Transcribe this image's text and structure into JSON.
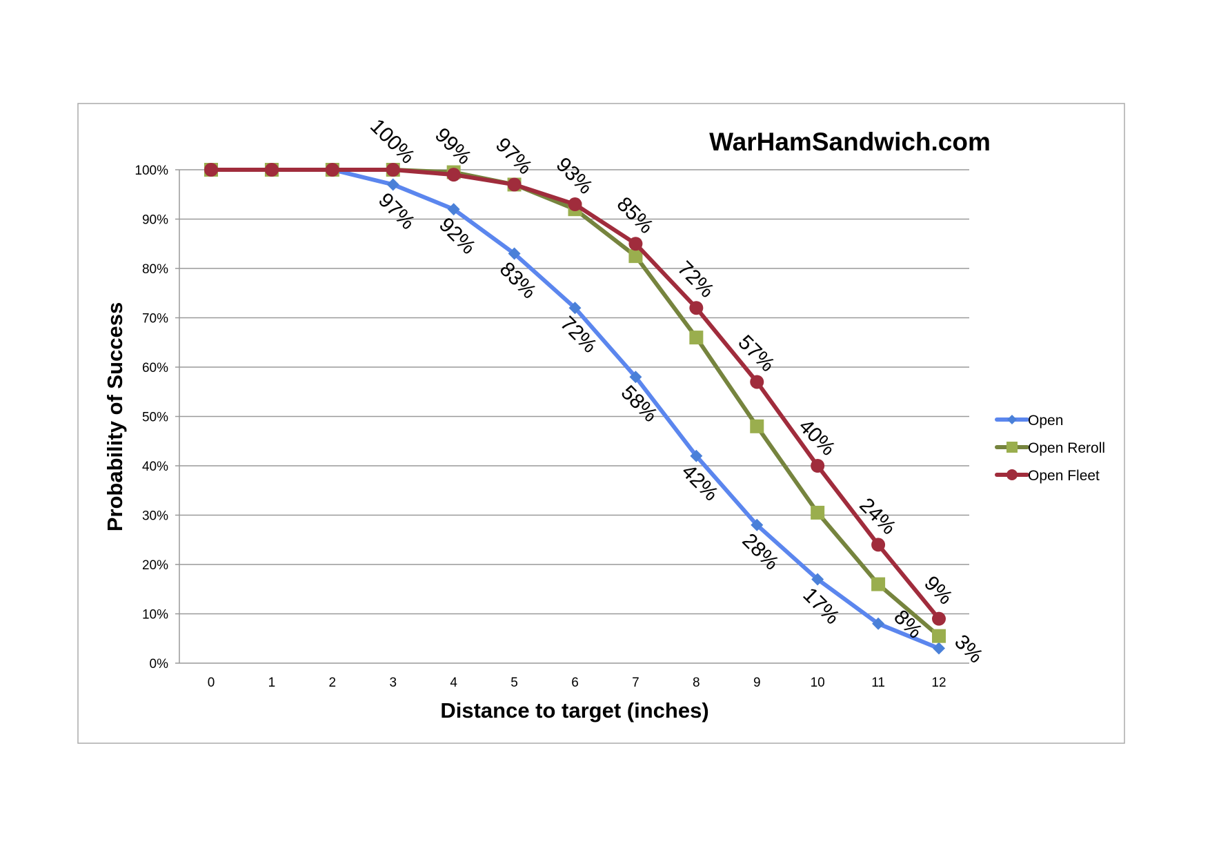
{
  "chart_data": {
    "type": "line",
    "title": "WarHamSandwich.com",
    "xlabel": "Distance to target (inches)",
    "ylabel": "Probability of Success",
    "x": [
      "0",
      "1",
      "2",
      "3",
      "4",
      "5",
      "6",
      "7",
      "8",
      "9",
      "10",
      "11",
      "12"
    ],
    "ylim": [
      0,
      100
    ],
    "yticks": [
      "0%",
      "10%",
      "20%",
      "30%",
      "40%",
      "50%",
      "60%",
      "70%",
      "80%",
      "90%",
      "100%"
    ],
    "grid": true,
    "legend_position": "right",
    "series": [
      {
        "name": "Open",
        "color": "#5b86ee",
        "marker": "diamond",
        "marker_color": "#4a80d8",
        "values": [
          100,
          100,
          100,
          97,
          92,
          83,
          72,
          58,
          42,
          28,
          17,
          8,
          3
        ],
        "labels": [
          null,
          null,
          null,
          "97%",
          "92%",
          "83%",
          "72%",
          "58%",
          "42%",
          "28%",
          "17%",
          "8%",
          "3%"
        ]
      },
      {
        "name": "Open Reroll",
        "color": "#76843e",
        "marker": "square",
        "marker_color": "#9aae4e",
        "values": [
          100,
          100,
          100,
          100,
          99.5,
          97,
          92,
          82.5,
          66,
          48,
          30.5,
          16,
          5.5
        ],
        "labels": [
          null,
          null,
          null,
          null,
          null,
          null,
          null,
          null,
          null,
          null,
          null,
          null,
          null
        ]
      },
      {
        "name": "Open Fleet",
        "color": "#a02c3c",
        "marker": "circle",
        "marker_color": "#a02c3c",
        "values": [
          100,
          100,
          100,
          100,
          99,
          97,
          93,
          85,
          72,
          57,
          40,
          24,
          9
        ],
        "labels": [
          null,
          null,
          null,
          "100%",
          "99%",
          "97%",
          "93%",
          "85%",
          "72%",
          "57%",
          "40%",
          "24%",
          "9%"
        ]
      }
    ]
  }
}
